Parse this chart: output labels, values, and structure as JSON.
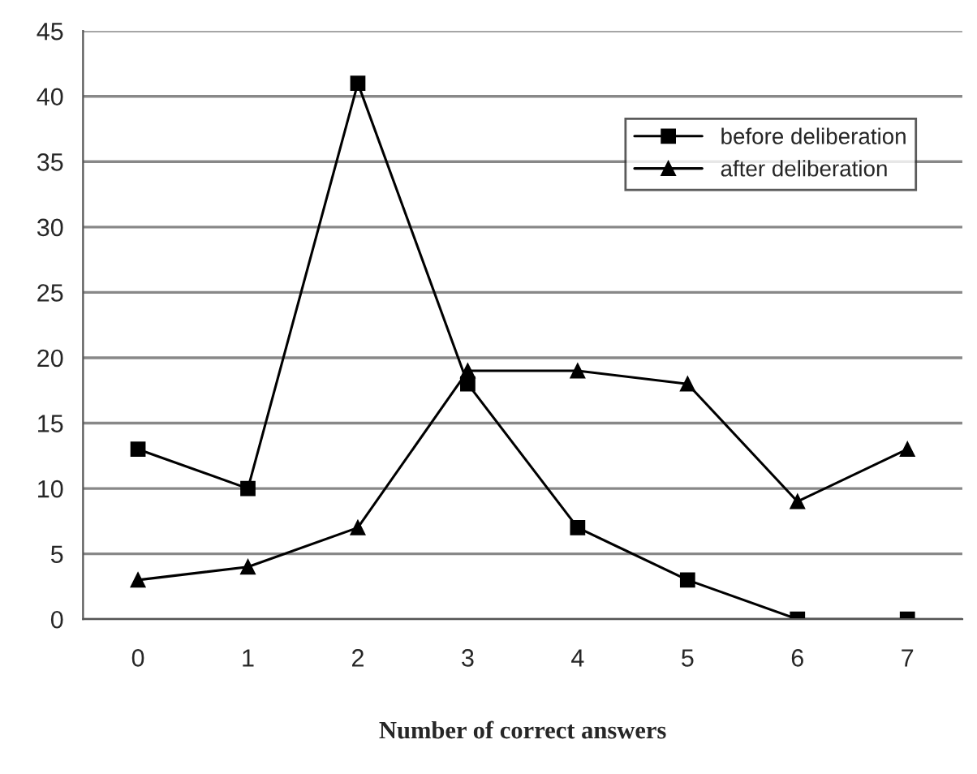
{
  "chart_data": {
    "type": "line",
    "xlabel": "Number of correct answers",
    "categories": [
      "0",
      "1",
      "2",
      "3",
      "4",
      "5",
      "6",
      "7"
    ],
    "series": [
      {
        "name": "before deliberation",
        "color": "#000000",
        "marker": "square",
        "values": [
          13,
          10,
          41,
          18,
          7,
          3,
          0,
          0
        ]
      },
      {
        "name": "after deliberation",
        "color": "#000000",
        "marker": "triangle",
        "values": [
          3,
          4,
          7,
          19,
          19,
          18,
          9,
          13
        ]
      }
    ],
    "ylim": [
      0,
      45
    ],
    "yticks": [
      0,
      5,
      10,
      15,
      20,
      25,
      30,
      35,
      40,
      45
    ],
    "grid": "y",
    "legend": "top right",
    "line_style": "solid"
  }
}
